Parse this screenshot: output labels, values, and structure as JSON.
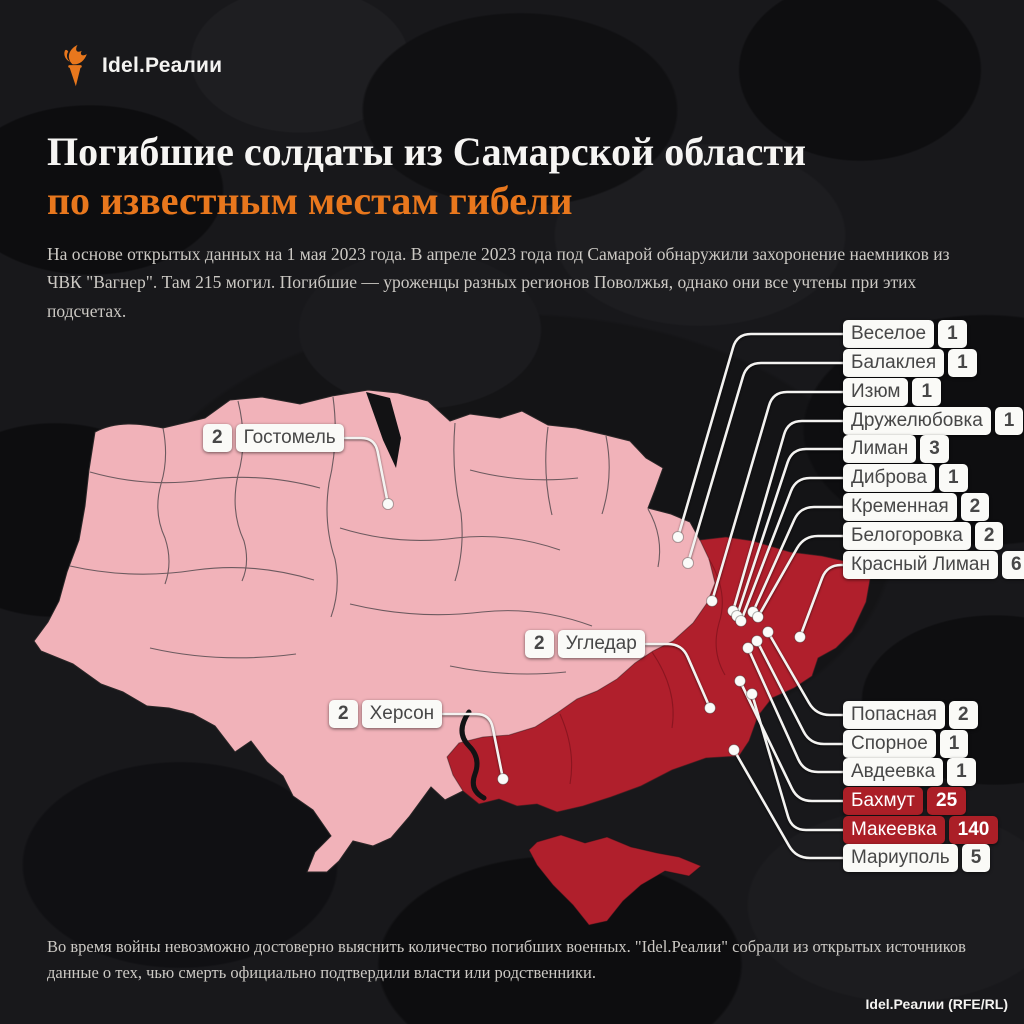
{
  "logo": {
    "text": "Idel.Реалии",
    "icon": "torch-icon"
  },
  "title": {
    "line1": "Погибшие солдаты из Самарской области",
    "line2": "по известным местам гибели"
  },
  "intro": "На основе открытых данных на 1 мая 2023 года. В апреле 2023 года под Самарой обнаружили захоронение наемников из ЧВК \"Вагнер\". Там 215 могил. Погибшие — уроженцы разных регионов Поволжья, однако они все учтены при этих подсчетах.",
  "footer_note": "Во время войны невозможно достоверно выяснить количество погибших военных. \"Idel.Реалии\" собрали из открытых источников данные о тех, чью смерть официально подтвердили власти или родственники.",
  "attribution": "Idel.Реалии (RFE/RL)",
  "colors": {
    "accent_orange": "#e8771d",
    "map_pink": "#f1b2b9",
    "map_red": "#b01f2c",
    "label_bg": "#fafaf7",
    "label_text": "#474747",
    "highlight_bg": "#ab1f27",
    "highlight_text": "#ffffff",
    "background": "#18181b",
    "leader_line": "#f4f3f1"
  },
  "chart_data": {
    "type": "map",
    "region": "Украина",
    "title": "Погибшие солдаты из Самарской области по известным местам гибели",
    "as_of": "1 мая 2023 года",
    "places": [
      {
        "name": "Веселое",
        "count": 1,
        "highlight": false
      },
      {
        "name": "Балаклея",
        "count": 1,
        "highlight": false
      },
      {
        "name": "Изюм",
        "count": 1,
        "highlight": false
      },
      {
        "name": "Дружелюбовка",
        "count": 1,
        "highlight": false
      },
      {
        "name": "Лиман",
        "count": 3,
        "highlight": false
      },
      {
        "name": "Диброва",
        "count": 1,
        "highlight": false
      },
      {
        "name": "Кременная",
        "count": 2,
        "highlight": false
      },
      {
        "name": "Белогоровка",
        "count": 2,
        "highlight": false
      },
      {
        "name": "Красный Лиман",
        "count": 6,
        "highlight": false
      },
      {
        "name": "Попасная",
        "count": 2,
        "highlight": false
      },
      {
        "name": "Спорное",
        "count": 1,
        "highlight": false
      },
      {
        "name": "Авдеевка",
        "count": 1,
        "highlight": false
      },
      {
        "name": "Бахмут",
        "count": 25,
        "highlight": true
      },
      {
        "name": "Макеевка",
        "count": 140,
        "highlight": true
      },
      {
        "name": "Мариуполь",
        "count": 5,
        "highlight": false
      },
      {
        "name": "Гостомель",
        "count": 2,
        "highlight": false
      },
      {
        "name": "Угледар",
        "count": 2,
        "highlight": false
      },
      {
        "name": "Херсон",
        "count": 2,
        "highlight": false
      }
    ]
  }
}
